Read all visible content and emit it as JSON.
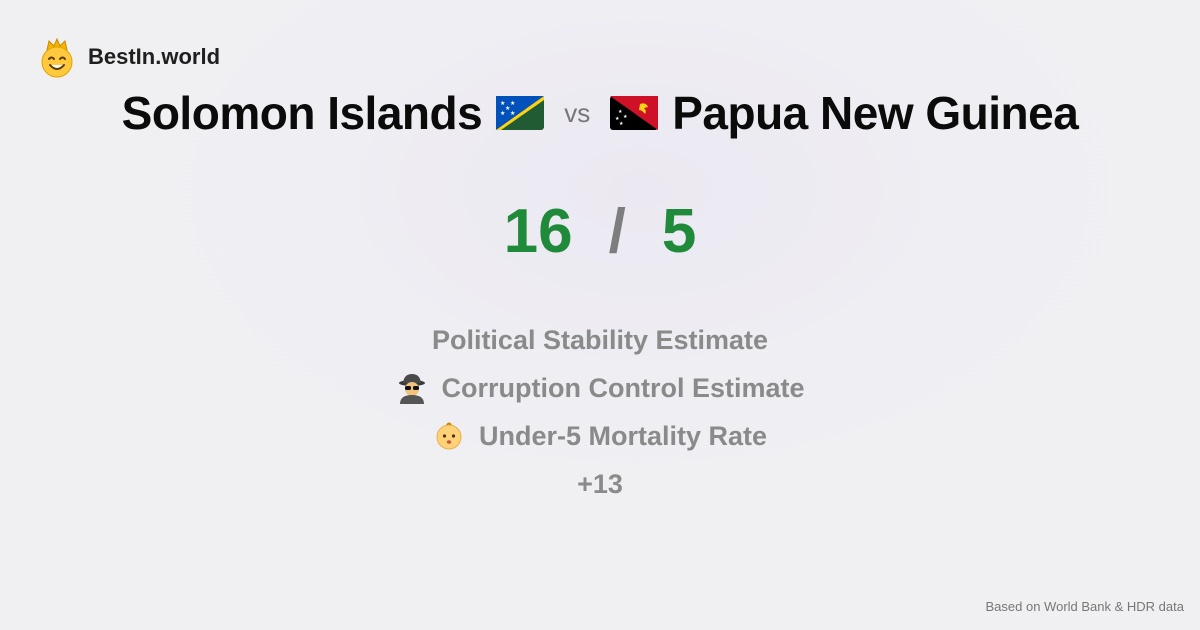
{
  "brand": {
    "name": "BestIn.world",
    "logo_icon": "crowned-smiley-icon"
  },
  "comparison": {
    "left_country": "Solomon Islands",
    "left_flag": "solomon-islands-flag-icon",
    "vs_label": "vs",
    "right_country": "Papua New Guinea",
    "right_flag": "papua-new-guinea-flag-icon"
  },
  "score": {
    "left": "16",
    "separator": "/",
    "right": "5",
    "color": "#1e8a3a"
  },
  "metrics": [
    {
      "label": "Political Stability Estimate",
      "icon": ""
    },
    {
      "label": "Corruption Control Estimate",
      "icon": "detective-icon"
    },
    {
      "label": "Under-5 Mortality Rate",
      "icon": "baby-icon"
    }
  ],
  "more_label": "+13",
  "footer": {
    "source": "Based on World Bank & HDR data"
  }
}
